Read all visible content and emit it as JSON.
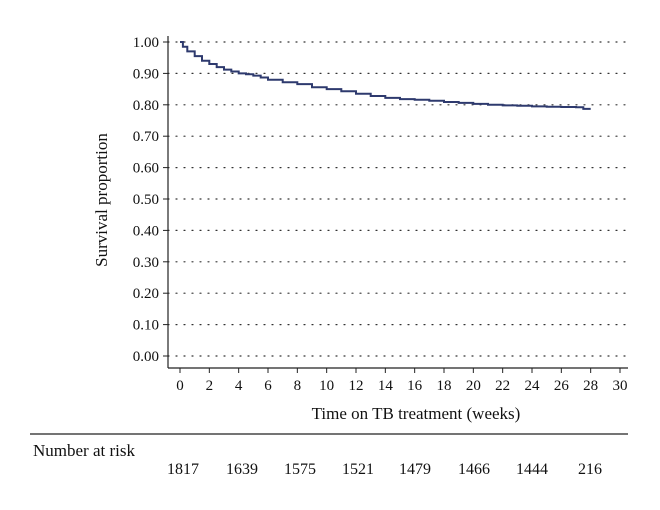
{
  "chart_data": {
    "type": "line",
    "title": "",
    "xlabel": "Time on TB treatment (weeks)",
    "ylabel": "Survival proportion",
    "xlim": [
      0,
      30
    ],
    "ylim": [
      0,
      1.0
    ],
    "x_ticks": [
      0,
      2,
      4,
      6,
      8,
      10,
      12,
      14,
      16,
      18,
      20,
      22,
      24,
      26,
      28,
      30
    ],
    "y_ticks": [
      0.0,
      0.1,
      0.2,
      0.3,
      0.4,
      0.5,
      0.6,
      0.7,
      0.8,
      0.9,
      1.0
    ],
    "x_tick_labels": [
      "0",
      "2",
      "4",
      "6",
      "8",
      "10",
      "12",
      "14",
      "16",
      "18",
      "20",
      "22",
      "24",
      "26",
      "28",
      "30"
    ],
    "y_tick_labels": [
      "0.00",
      "0.10",
      "0.20",
      "0.30",
      "0.40",
      "0.50",
      "0.60",
      "0.70",
      "0.80",
      "0.90",
      "1.00"
    ],
    "grid": "horizontal dotted",
    "line_color": "#2e3a6e",
    "series": [
      {
        "x": [
          0,
          0.2,
          0.5,
          1,
          1.5,
          2,
          2.5,
          3,
          3.5,
          4,
          4.5,
          5,
          5.5,
          6,
          7,
          8,
          9,
          10,
          11,
          12,
          13,
          14,
          15,
          16,
          17,
          18,
          19,
          20,
          21,
          22,
          23,
          24,
          25,
          26,
          27,
          27.5,
          28
        ],
        "y": [
          1.0,
          0.985,
          0.97,
          0.955,
          0.94,
          0.93,
          0.92,
          0.912,
          0.906,
          0.9,
          0.897,
          0.893,
          0.887,
          0.88,
          0.872,
          0.866,
          0.856,
          0.85,
          0.843,
          0.835,
          0.828,
          0.822,
          0.818,
          0.816,
          0.813,
          0.809,
          0.806,
          0.803,
          0.8,
          0.798,
          0.797,
          0.795,
          0.794,
          0.793,
          0.792,
          0.787,
          0.787
        ]
      }
    ],
    "risk_table": {
      "title": "Number at risk",
      "at_x": [
        0,
        4,
        8,
        12,
        16,
        20,
        24,
        28
      ],
      "values": [
        "1817",
        "1639",
        "1575",
        "1521",
        "1479",
        "1466",
        "1444",
        "216"
      ]
    }
  }
}
